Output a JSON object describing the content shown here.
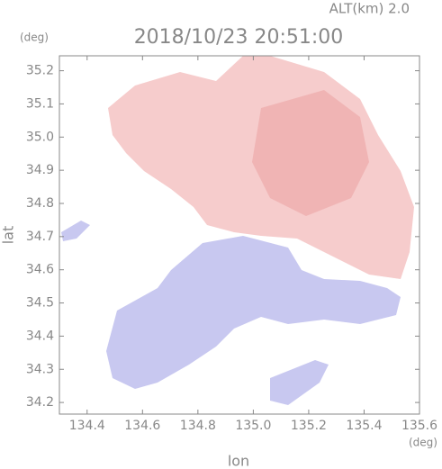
{
  "chart_data": {
    "type": "map",
    "title": "2018/10/23 20:51:00",
    "subtitle": "ALT(km) 2.0",
    "xlabel": "lon",
    "ylabel": "lat",
    "xunit": "(deg)",
    "yunit": "(deg)",
    "xlim": [
      134.3,
      135.6
    ],
    "ylim": [
      34.165,
      35.245
    ],
    "xticks": [
      134.4,
      134.6,
      134.8,
      {
        "value": 135.0,
        "label": "135.0"
      },
      135.2,
      135.4,
      135.6
    ],
    "yticks": [
      34.2,
      34.3,
      34.4,
      34.5,
      34.6,
      34.7,
      34.8,
      34.9,
      {
        "value": 35.0,
        "label": "35.0"
      },
      35.1,
      35.2
    ]
  }
}
